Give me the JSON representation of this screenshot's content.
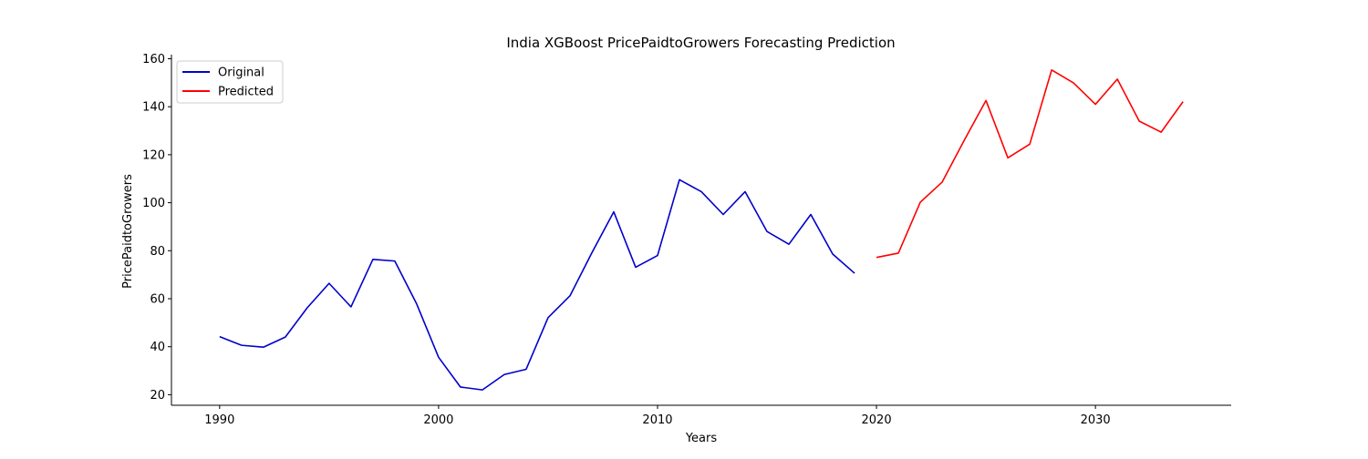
{
  "chart_data": {
    "type": "line",
    "title": "India XGBoost PricePaidtoGrowers Forecasting Prediction",
    "xlabel": "Years",
    "ylabel": "PricePaidtoGrowers",
    "xlim": [
      1987.8,
      2036.2
    ],
    "ylim": [
      15.6,
      161.7
    ],
    "xticks": [
      1990,
      2000,
      2010,
      2020,
      2030
    ],
    "yticks": [
      20,
      40,
      60,
      80,
      100,
      120,
      140,
      160
    ],
    "grid": false,
    "legend_position": "upper-left",
    "series": [
      {
        "name": "Original",
        "color": "#0000cc",
        "x": [
          1990,
          1991,
          1992,
          1993,
          1994,
          1995,
          1996,
          1997,
          1998,
          1999,
          2000,
          2001,
          2002,
          2003,
          2004,
          2005,
          2006,
          2007,
          2008,
          2009,
          2010,
          2011,
          2012,
          2013,
          2014,
          2015,
          2016,
          2017,
          2018,
          2019
        ],
        "values": [
          44.2,
          40.6,
          39.8,
          44.0,
          56.2,
          66.4,
          56.6,
          76.4,
          75.7,
          57.8,
          35.6,
          23.2,
          22.0,
          28.4,
          30.6,
          52.1,
          61.2,
          79.1,
          96.2,
          73.1,
          78.0,
          109.6,
          104.6,
          95.1,
          104.6,
          88.0,
          82.7,
          95.1,
          78.6,
          70.6
        ]
      },
      {
        "name": "Predicted",
        "color": "#ff0000",
        "x": [
          2020,
          2021,
          2022,
          2023,
          2024,
          2025,
          2026,
          2027,
          2028,
          2029,
          2030,
          2031,
          2032,
          2033,
          2034
        ],
        "values": [
          77.2,
          79.0,
          100.2,
          108.6,
          125.9,
          142.6,
          118.7,
          124.4,
          155.3,
          149.9,
          141.0,
          151.5,
          134.0,
          129.4,
          142.1
        ]
      }
    ]
  }
}
